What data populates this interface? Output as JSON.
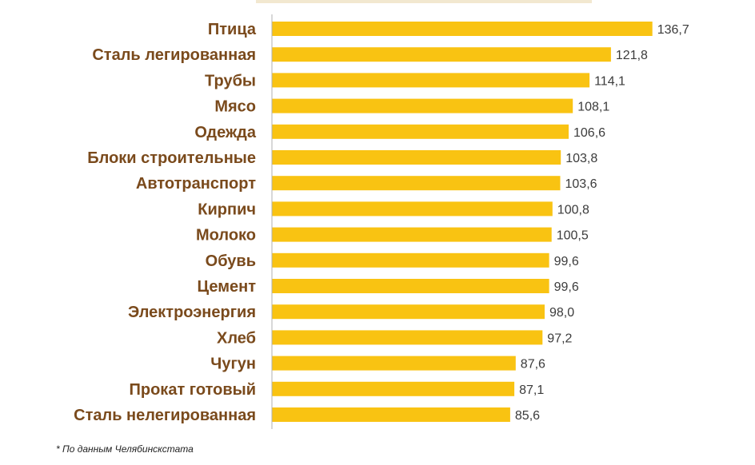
{
  "chart_data": {
    "type": "bar",
    "orientation": "horizontal",
    "categories": [
      "Птица",
      "Сталь легированная",
      "Трубы",
      "Мясо",
      "Одежда",
      "Блоки строительные",
      "Автотранспорт",
      "Кирпич",
      "Молоко",
      "Обувь",
      "Цемент",
      "Электроэнергия",
      "Хлеб",
      "Чугун",
      "Прокат готовый",
      "Сталь нелегированная"
    ],
    "values": [
      136.7,
      121.8,
      114.1,
      108.1,
      106.6,
      103.8,
      103.6,
      100.8,
      100.5,
      99.6,
      99.6,
      98.0,
      97.2,
      87.6,
      87.1,
      85.6
    ],
    "value_labels": [
      "136,7",
      "121,8",
      "114,1",
      "108,1",
      "106,6",
      "103,8",
      "103,6",
      "100,8",
      "100,5",
      "99,6",
      "99,6",
      "98,0",
      "97,2",
      "87,6",
      "87,1",
      "85,6"
    ],
    "xlim": [
      0,
      140
    ],
    "grid": false,
    "bar_color": "#f9c312",
    "label_color": "#7a4a1c",
    "value_color": "#3b3b3b",
    "axis_color": "#b0b0b0"
  },
  "footnote": "* По данным Челябинскстата"
}
